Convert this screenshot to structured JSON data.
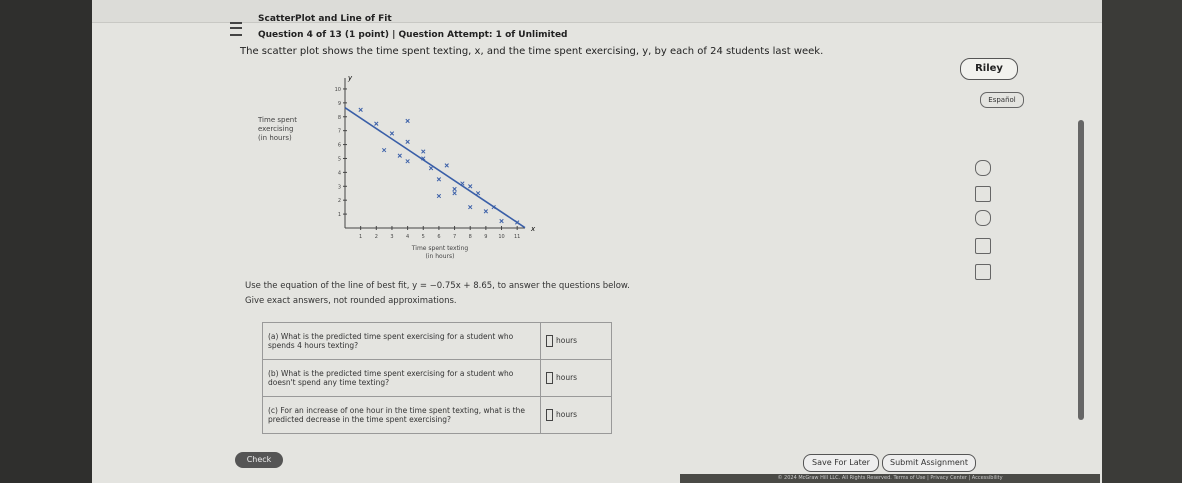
{
  "header": {
    "title": "ScatterPlot and Line of Fit",
    "question": "Question 4 of 13 (1 point) | Question Attempt: 1 of Unlimited"
  },
  "user": "Riley",
  "language": "Español",
  "prompt": "The scatter plot shows the time spent texting, x, and the time spent exercising, y, by each of 24 students last week.",
  "plot": {
    "type": "scatter",
    "x_symbol": "x",
    "y_symbol": "y",
    "x_label_lines": [
      "Time spent texting",
      "(in hours)"
    ],
    "y_label_lines": [
      "Time spent",
      "exercising",
      "(in hours)"
    ],
    "xlim": [
      0,
      11.5
    ],
    "ylim": [
      0,
      10.5
    ],
    "xticks": [
      1,
      2,
      3,
      4,
      5,
      6,
      7,
      8,
      9,
      10,
      11
    ],
    "yticks": [
      1,
      2,
      3,
      4,
      5,
      6,
      7,
      8,
      9,
      10
    ],
    "x": [
      1,
      2,
      3,
      4,
      2.5,
      3.5,
      4,
      5,
      5.5,
      6,
      7,
      6,
      7,
      7.5,
      8,
      8.5,
      8,
      9,
      9.5,
      10,
      11,
      4,
      5,
      6.5
    ],
    "y": [
      8.5,
      7.5,
      6.8,
      7.7,
      5.6,
      5.2,
      4.8,
      5.5,
      4.3,
      3.5,
      2.8,
      2.3,
      2.5,
      3.2,
      3,
      2.5,
      1.5,
      1.2,
      1.5,
      0.5,
      0.4,
      6.2,
      5,
      4.5
    ],
    "color": "#3a5fa8",
    "fit": {
      "slope": -0.75,
      "intercept": 8.65,
      "color": "#3a5fa8"
    }
  },
  "instructions": "Use the equation of the line of best fit, y = −0.75x + 8.65, to answer the questions below.",
  "exact_note": "Give exact answers, not rounded approximations.",
  "questions": [
    {
      "text": "(a) What is the predicted time spent exercising for a student who spends 4 hours texting?",
      "unit": "hours"
    },
    {
      "text": "(b) What is the predicted time spent exercising for a student who doesn't spend any time texting?",
      "unit": "hours"
    },
    {
      "text": "(c) For an increase of one hour in the time spent texting, what is the predicted decrease in the time spent exercising?",
      "unit": "hours"
    }
  ],
  "buttons": {
    "check": "Check",
    "save": "Save For Later",
    "submit": "Submit Assignment"
  },
  "footer": "© 2024 McGraw Hill LLC. All Rights Reserved. Terms of Use | Privacy Center | Accessibility"
}
